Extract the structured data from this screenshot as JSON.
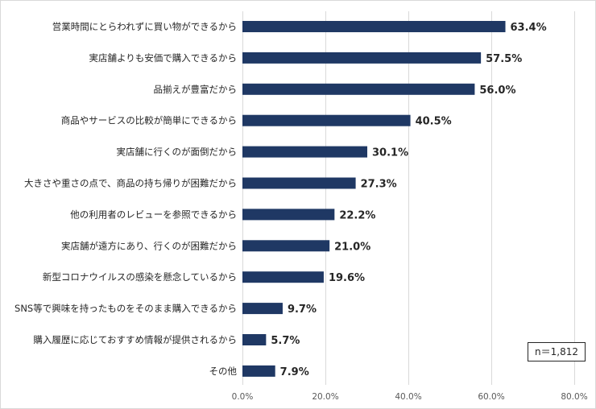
{
  "chart_data": {
    "type": "bar",
    "orientation": "horizontal",
    "categories": [
      "営業時間にとらわれずに買い物ができるから",
      "実店舗よりも安価で購入できるから",
      "品揃えが豊富だから",
      "商品やサービスの比較が簡単にできるから",
      "実店舗に行くのが面倒だから",
      "大きさや重さの点で、商品の持ち帰りが困難だから",
      "他の利用者のレビューを参照できるから",
      "実店舗が遠方にあり、行くのが困難だから",
      "新型コロナウイルスの感染を懸念しているから",
      "SNS等で興味を持ったものをそのまま購入できるから",
      "購入履歴に応じておすすめ情報が提供されるから",
      "その他"
    ],
    "values": [
      63.4,
      57.5,
      56.0,
      40.5,
      30.1,
      27.3,
      22.2,
      21.0,
      19.6,
      9.7,
      5.7,
      7.9
    ],
    "value_labels": [
      "63.4%",
      "57.5%",
      "56.0%",
      "40.5%",
      "30.1%",
      "27.3%",
      "22.2%",
      "21.0%",
      "19.6%",
      "9.7%",
      "5.7%",
      "7.9%"
    ],
    "xlim": [
      0,
      80
    ],
    "xticks": [
      0,
      20,
      40,
      60,
      80
    ],
    "xtick_labels": [
      "0.0%",
      "20.0%",
      "40.0%",
      "60.0%",
      "80.0%"
    ],
    "grid": "vertical",
    "bar_color": "#1f3864",
    "title": "",
    "xlabel": "",
    "ylabel": "",
    "annotation": "n＝1,812"
  }
}
